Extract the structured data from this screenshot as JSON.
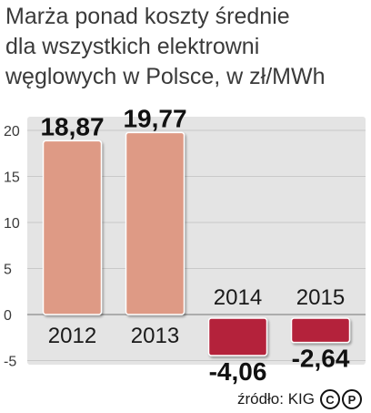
{
  "title_lines": [
    "Marża ponad koszty średnie",
    "dla wszystkich elektrowni",
    "węglowych w Polsce, w zł/MWh"
  ],
  "source": "źródło: KIG",
  "cc_symbols": [
    "C",
    "P"
  ],
  "colors": {
    "positive_bar": "#de9a85",
    "negative_bar": "#b4243a",
    "panel_bg": "#e4e4e4",
    "grid": "#c9c9c9"
  },
  "chart_data": {
    "type": "bar",
    "categories": [
      "2012",
      "2013",
      "2014",
      "2015"
    ],
    "values": [
      18.87,
      19.77,
      -4.06,
      -2.64
    ],
    "value_labels": [
      "18,87",
      "19,77",
      "-4,06",
      "-2,64"
    ],
    "yticks": [
      20,
      15,
      10,
      5,
      0,
      -5
    ],
    "ytick_labels": [
      "20",
      "15",
      "10",
      "5",
      "0",
      "-5"
    ],
    "ylim": [
      -6,
      21
    ],
    "grid": true,
    "title": "Marża ponad koszty średnie dla wszystkich elektrowni węglowych w Polsce, w zł/MWh",
    "xlabel": "",
    "ylabel": ""
  }
}
